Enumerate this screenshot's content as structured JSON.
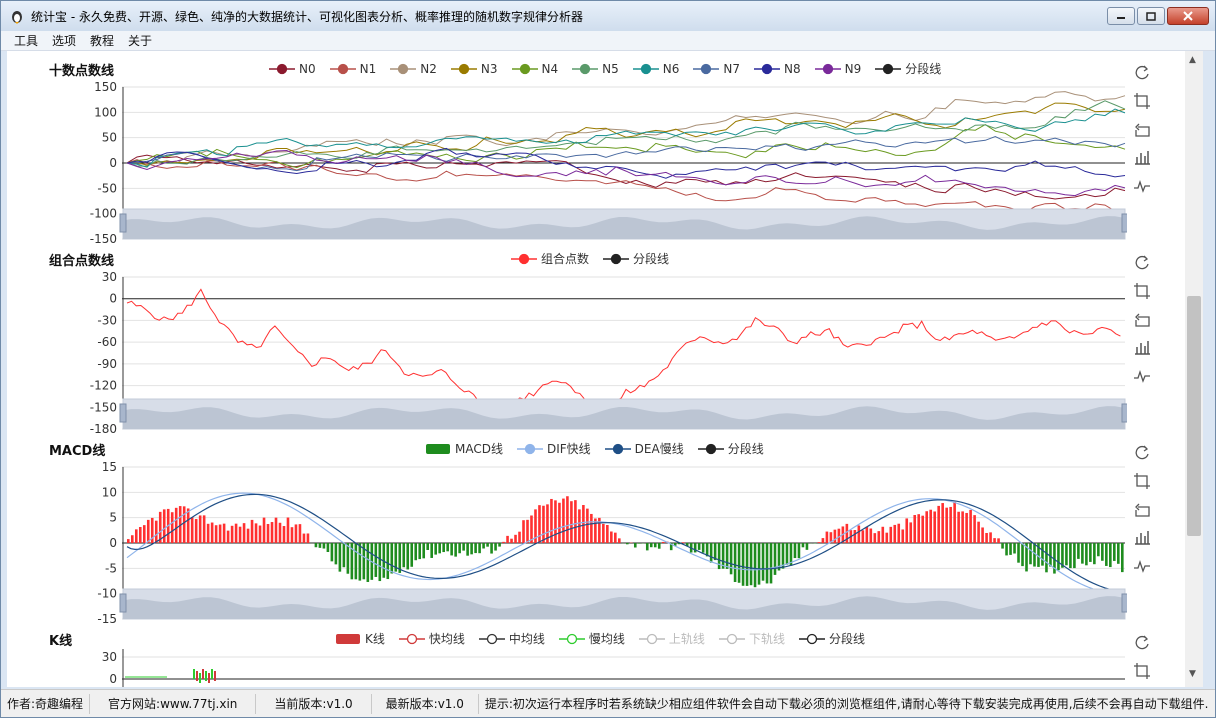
{
  "window": {
    "title": "统计宝 - 永久免费、开源、绿色、纯净的大数据统计、可视化图表分析、概率推理的随机数字规律分析器"
  },
  "menu": [
    "工具",
    "选项",
    "教程",
    "关于"
  ],
  "status": {
    "author": "作者:奇趣编程",
    "site": "官方网站:www.77tj.xin",
    "current": "当前版本:v1.0",
    "latest": "最新版本:v1.0",
    "tip": "提示:初次运行本程序时若系统缺少相应组件软件会自动下载必须的浏览框组件,请耐心等待下载安装完成再使用,后续不会再自动下载组件."
  },
  "colors": {
    "up": "#ff3030",
    "down": "#1e8c1e",
    "divider": "#222222"
  },
  "panels": {
    "ten": {
      "title": "十数点数线",
      "legend": [
        {
          "name": "N0",
          "color": "#8b1a2e"
        },
        {
          "name": "N1",
          "color": "#b8504a"
        },
        {
          "name": "N2",
          "color": "#a89078"
        },
        {
          "name": "N3",
          "color": "#9a7b00"
        },
        {
          "name": "N4",
          "color": "#6a9a20"
        },
        {
          "name": "N5",
          "color": "#5a9a6a"
        },
        {
          "name": "N6",
          "color": "#1a9090"
        },
        {
          "name": "N7",
          "color": "#4a6aa0"
        },
        {
          "name": "N8",
          "color": "#2a2a9a"
        },
        {
          "name": "N9",
          "color": "#7a2a9a"
        },
        {
          "name": "分段线",
          "color": "#222222"
        }
      ],
      "yticks": [
        "150",
        "100",
        "50",
        "0",
        "-50",
        "-100",
        "-150"
      ]
    },
    "combo": {
      "title": "组合点数线",
      "legend": [
        {
          "name": "组合点数",
          "color": "#ff3030"
        },
        {
          "name": "分段线",
          "color": "#222222"
        }
      ],
      "yticks": [
        "30",
        "0",
        "-30",
        "-60",
        "-90",
        "-120",
        "-150",
        "-180"
      ]
    },
    "macd": {
      "title": "MACD线",
      "legend": [
        {
          "name": "MACD线",
          "color": "#1e8c1e"
        },
        {
          "name": "DIF快线",
          "color": "#8fb4ea"
        },
        {
          "name": "DEA慢线",
          "color": "#1f4f86"
        },
        {
          "name": "分段线",
          "color": "#222222"
        }
      ],
      "yticks": [
        "15",
        "10",
        "5",
        "0",
        "-5",
        "-10",
        "-15"
      ]
    },
    "k": {
      "title": "K线",
      "legend": [
        {
          "name": "K线",
          "color": "#d03a3a"
        },
        {
          "name": "快均线",
          "color": "#d03a3a"
        },
        {
          "name": "中均线",
          "color": "#333333"
        },
        {
          "name": "慢均线",
          "color": "#2ecc2e"
        },
        {
          "name": "上轨线",
          "color": "#bbbbbb"
        },
        {
          "name": "下轨线",
          "color": "#bbbbbb"
        },
        {
          "name": "分段线",
          "color": "#222222"
        }
      ],
      "yticks": [
        "30",
        "0"
      ]
    }
  },
  "chart_data": [
    {
      "type": "line",
      "title": "十数点数线",
      "ylim": [
        -150,
        150
      ],
      "series_names": [
        "N0",
        "N1",
        "N2",
        "N3",
        "N4",
        "N5",
        "N6",
        "N7",
        "N8",
        "N9"
      ],
      "series_end": [
        -80,
        -125,
        115,
        95,
        25,
        85,
        90,
        35,
        -35,
        -80
      ]
    },
    {
      "type": "line",
      "title": "组合点数线",
      "ylim": [
        -180,
        30
      ],
      "series": [
        {
          "name": "组合点数",
          "values": [
            -5,
            -15,
            -30,
            -20,
            10,
            -30,
            -60,
            -70,
            -40,
            -70,
            -90,
            -80,
            -100,
            -90,
            -70,
            -100,
            -110,
            -100,
            -120,
            -140,
            -150,
            -140,
            -130,
            -110,
            -120,
            -140,
            -155,
            -130,
            -120,
            -100,
            -70,
            -50,
            -60,
            -55,
            -30,
            -40,
            -60,
            -50,
            -45,
            -70,
            -60,
            -55,
            -40,
            -35,
            -60,
            -50,
            -45,
            -60,
            -55,
            -40,
            -30,
            -45,
            -50,
            -40,
            -60
          ]
        }
      ]
    },
    {
      "type": "bar",
      "title": "MACD线",
      "ylim": [
        -15,
        15
      ]
    },
    {
      "type": "bar",
      "title": "K线",
      "ylim": [
        0,
        30
      ]
    }
  ]
}
